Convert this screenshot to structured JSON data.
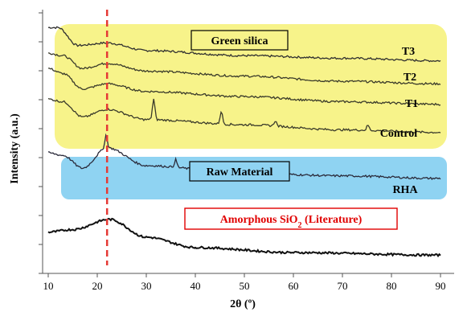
{
  "chart_data": {
    "type": "line",
    "xlabel": "2θ (º)",
    "ylabel": "Intensity (a.u.)",
    "xlim": [
      10,
      90
    ],
    "xticks": [
      "10",
      "20",
      "30",
      "40",
      "50",
      "60",
      "70",
      "80",
      "90"
    ],
    "reference_line_x": 22,
    "reference_line_color": "#e53935",
    "groups": [
      {
        "label": "Green silica",
        "color": "#f7f38a",
        "series": [
          "T3",
          "T2",
          "T1",
          "Control"
        ]
      },
      {
        "label": "Raw Material",
        "color": "#8fd3f2",
        "series": [
          "RHA"
        ]
      }
    ],
    "literature_label": "Amorphous SiO",
    "literature_sub": "2",
    "literature_suffix": " (Literature)",
    "series": [
      {
        "name": "T3",
        "color": "#2f2f2f",
        "base": 0.8,
        "hump_height": 0.07,
        "hump_center": 22,
        "peaks": [],
        "points": [
          [
            10,
            0.93
          ],
          [
            12,
            0.93
          ],
          [
            16,
            0.86
          ],
          [
            22,
            0.87
          ],
          [
            30,
            0.84
          ],
          [
            50,
            0.82
          ],
          [
            70,
            0.81
          ],
          [
            90,
            0.8
          ]
        ]
      },
      {
        "name": "T2",
        "color": "#3a3a2a",
        "base": 0.71,
        "hump_height": 0.07,
        "hump_center": 22,
        "peaks": [],
        "points": [
          [
            10,
            0.83
          ],
          [
            13,
            0.82
          ],
          [
            17,
            0.77
          ],
          [
            22,
            0.79
          ],
          [
            30,
            0.76
          ],
          [
            50,
            0.74
          ],
          [
            70,
            0.72
          ],
          [
            90,
            0.71
          ]
        ]
      },
      {
        "name": "T1",
        "color": "#3a3a2a",
        "base": 0.63,
        "hump_height": 0.08,
        "hump_center": 22,
        "peaks": [],
        "points": [
          [
            10,
            0.77
          ],
          [
            13,
            0.75
          ],
          [
            17,
            0.69
          ],
          [
            22,
            0.71
          ],
          [
            30,
            0.68
          ],
          [
            50,
            0.66
          ],
          [
            70,
            0.64
          ],
          [
            90,
            0.63
          ]
        ]
      },
      {
        "name": "Control",
        "color": "#3a3a2a",
        "base": 0.52,
        "hump_height": 0.08,
        "hump_center": 22,
        "peaks": [
          [
            31.5,
            0.08
          ],
          [
            45.3,
            0.05
          ],
          [
            56.3,
            0.02
          ],
          [
            75.2,
            0.02
          ]
        ],
        "points": [
          [
            10,
            0.65
          ],
          [
            13,
            0.64
          ],
          [
            17,
            0.58
          ],
          [
            22,
            0.61
          ],
          [
            30,
            0.57
          ],
          [
            50,
            0.55
          ],
          [
            70,
            0.53
          ],
          [
            90,
            0.52
          ]
        ]
      },
      {
        "name": "RHA",
        "color": "#2a2a3a",
        "base": 0.34,
        "hump_height": 0.1,
        "hump_center": 22,
        "peaks": [
          [
            21.8,
            0.05
          ],
          [
            36.0,
            0.03
          ]
        ],
        "points": [
          [
            10,
            0.44
          ],
          [
            13,
            0.43
          ],
          [
            17,
            0.38
          ],
          [
            22,
            0.46
          ],
          [
            30,
            0.39
          ],
          [
            50,
            0.36
          ],
          [
            70,
            0.35
          ],
          [
            90,
            0.34
          ]
        ]
      },
      {
        "name": "",
        "color": "#111111",
        "base": 0.04,
        "hump_height": 0.12,
        "hump_center": 22.5,
        "peaks": [],
        "points": [
          [
            10,
            0.13
          ],
          [
            15,
            0.14
          ],
          [
            22.5,
            0.18
          ],
          [
            30,
            0.11
          ],
          [
            40,
            0.07
          ],
          [
            60,
            0.05
          ],
          [
            90,
            0.04
          ]
        ]
      }
    ]
  }
}
